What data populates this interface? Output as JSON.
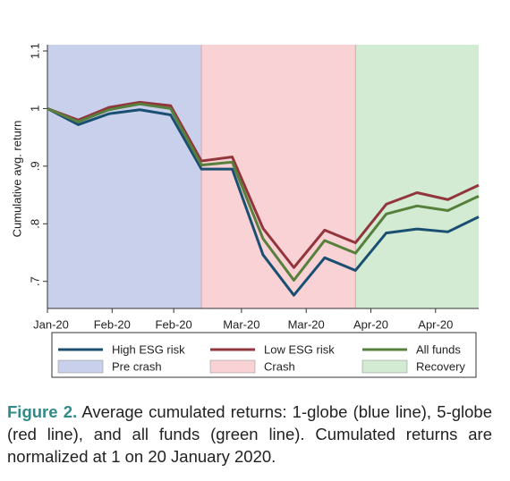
{
  "chart_data": {
    "type": "line",
    "y_label": "Cumulative avg. return",
    "x": [
      0,
      1,
      2,
      3,
      4,
      5,
      6,
      7,
      8,
      9,
      10,
      11,
      12,
      13,
      14
    ],
    "xlim": [
      0,
      14
    ],
    "xticks": [
      {
        "value": 0,
        "label": "Jan-20"
      },
      {
        "value": 2.1,
        "label": "Feb-20"
      },
      {
        "value": 4.1,
        "label": "Feb-20"
      },
      {
        "value": 6.3,
        "label": "Mar-20"
      },
      {
        "value": 8.4,
        "label": "Mar-20"
      },
      {
        "value": 10.5,
        "label": "Apr-20"
      },
      {
        "value": 12.6,
        "label": "Apr-20"
      }
    ],
    "ylim": [
      0.653,
      1.1
    ],
    "yticks": [
      {
        "value": 0.7,
        "label": ".7"
      },
      {
        "value": 0.8,
        "label": ".8"
      },
      {
        "value": 0.9,
        "label": ".9"
      },
      1,
      1.1
    ],
    "grid": false,
    "regions": [
      {
        "name": "Pre crash",
        "color": "#c9d0ec",
        "x0": 0,
        "x1": 5
      },
      {
        "name": "Crash",
        "color": "#f8d2d5",
        "x0": 5,
        "x1": 10
      },
      {
        "name": "Recovery",
        "color": "#d3ebd3",
        "x0": 10,
        "x1": 14
      }
    ],
    "series": [
      {
        "name": "High ESG risk",
        "color": "#1b4f72",
        "values": [
          1.0,
          0.972,
          0.991,
          0.998,
          0.989,
          0.895,
          0.895,
          0.746,
          0.676,
          0.741,
          0.719,
          0.784,
          0.791,
          0.786,
          0.812
        ]
      },
      {
        "name": "Low ESG risk",
        "color": "#92353d",
        "values": [
          1.0,
          0.98,
          1.002,
          1.011,
          1.005,
          0.909,
          0.916,
          0.792,
          0.724,
          0.789,
          0.767,
          0.834,
          0.854,
          0.842,
          0.867
        ]
      },
      {
        "name": "All funds",
        "color": "#56803b",
        "values": [
          1.0,
          0.977,
          0.998,
          1.008,
          1.0,
          0.902,
          0.907,
          0.774,
          0.702,
          0.771,
          0.749,
          0.817,
          0.831,
          0.823,
          0.848
        ]
      }
    ]
  },
  "caption": {
    "label": "Figure 2.",
    "text": "Average cumulated returns: 1-globe (blue line), 5-globe (red line), and all funds (green line). Cumulated returns are normalized at 1 on 20 January 2020."
  }
}
